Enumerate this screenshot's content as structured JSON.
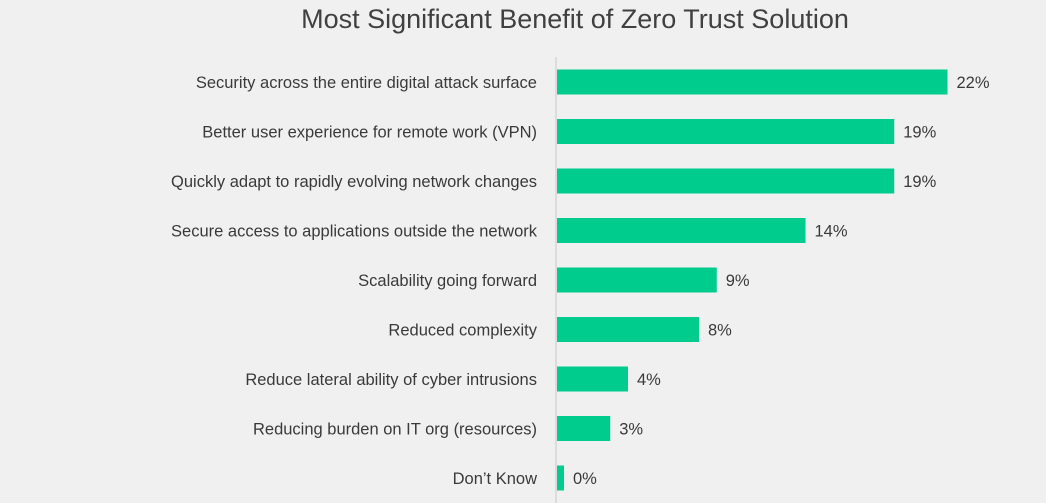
{
  "chart_data": {
    "type": "bar",
    "orientation": "horizontal",
    "title": "Most Significant Benefit of Zero Trust Solution",
    "categories": [
      "Security across the entire digital attack surface",
      "Better user experience for remote work (VPN)",
      "Quickly adapt to rapidly evolving network changes",
      "Secure access to applications outside the network",
      "Scalability going forward",
      "Reduced complexity",
      "Reduce lateral ability of cyber intrusions",
      "Reducing burden on IT org (resources)",
      "Don’t Know"
    ],
    "values": [
      22,
      19,
      19,
      14,
      9,
      8,
      4,
      3,
      0
    ],
    "value_labels": [
      "22%",
      "19%",
      "19%",
      "14%",
      "9%",
      "8%",
      "4%",
      "3%",
      "0%"
    ],
    "xlim": [
      0,
      22
    ],
    "grid": false,
    "legend": "none",
    "bar_color": "#00cc8e"
  }
}
